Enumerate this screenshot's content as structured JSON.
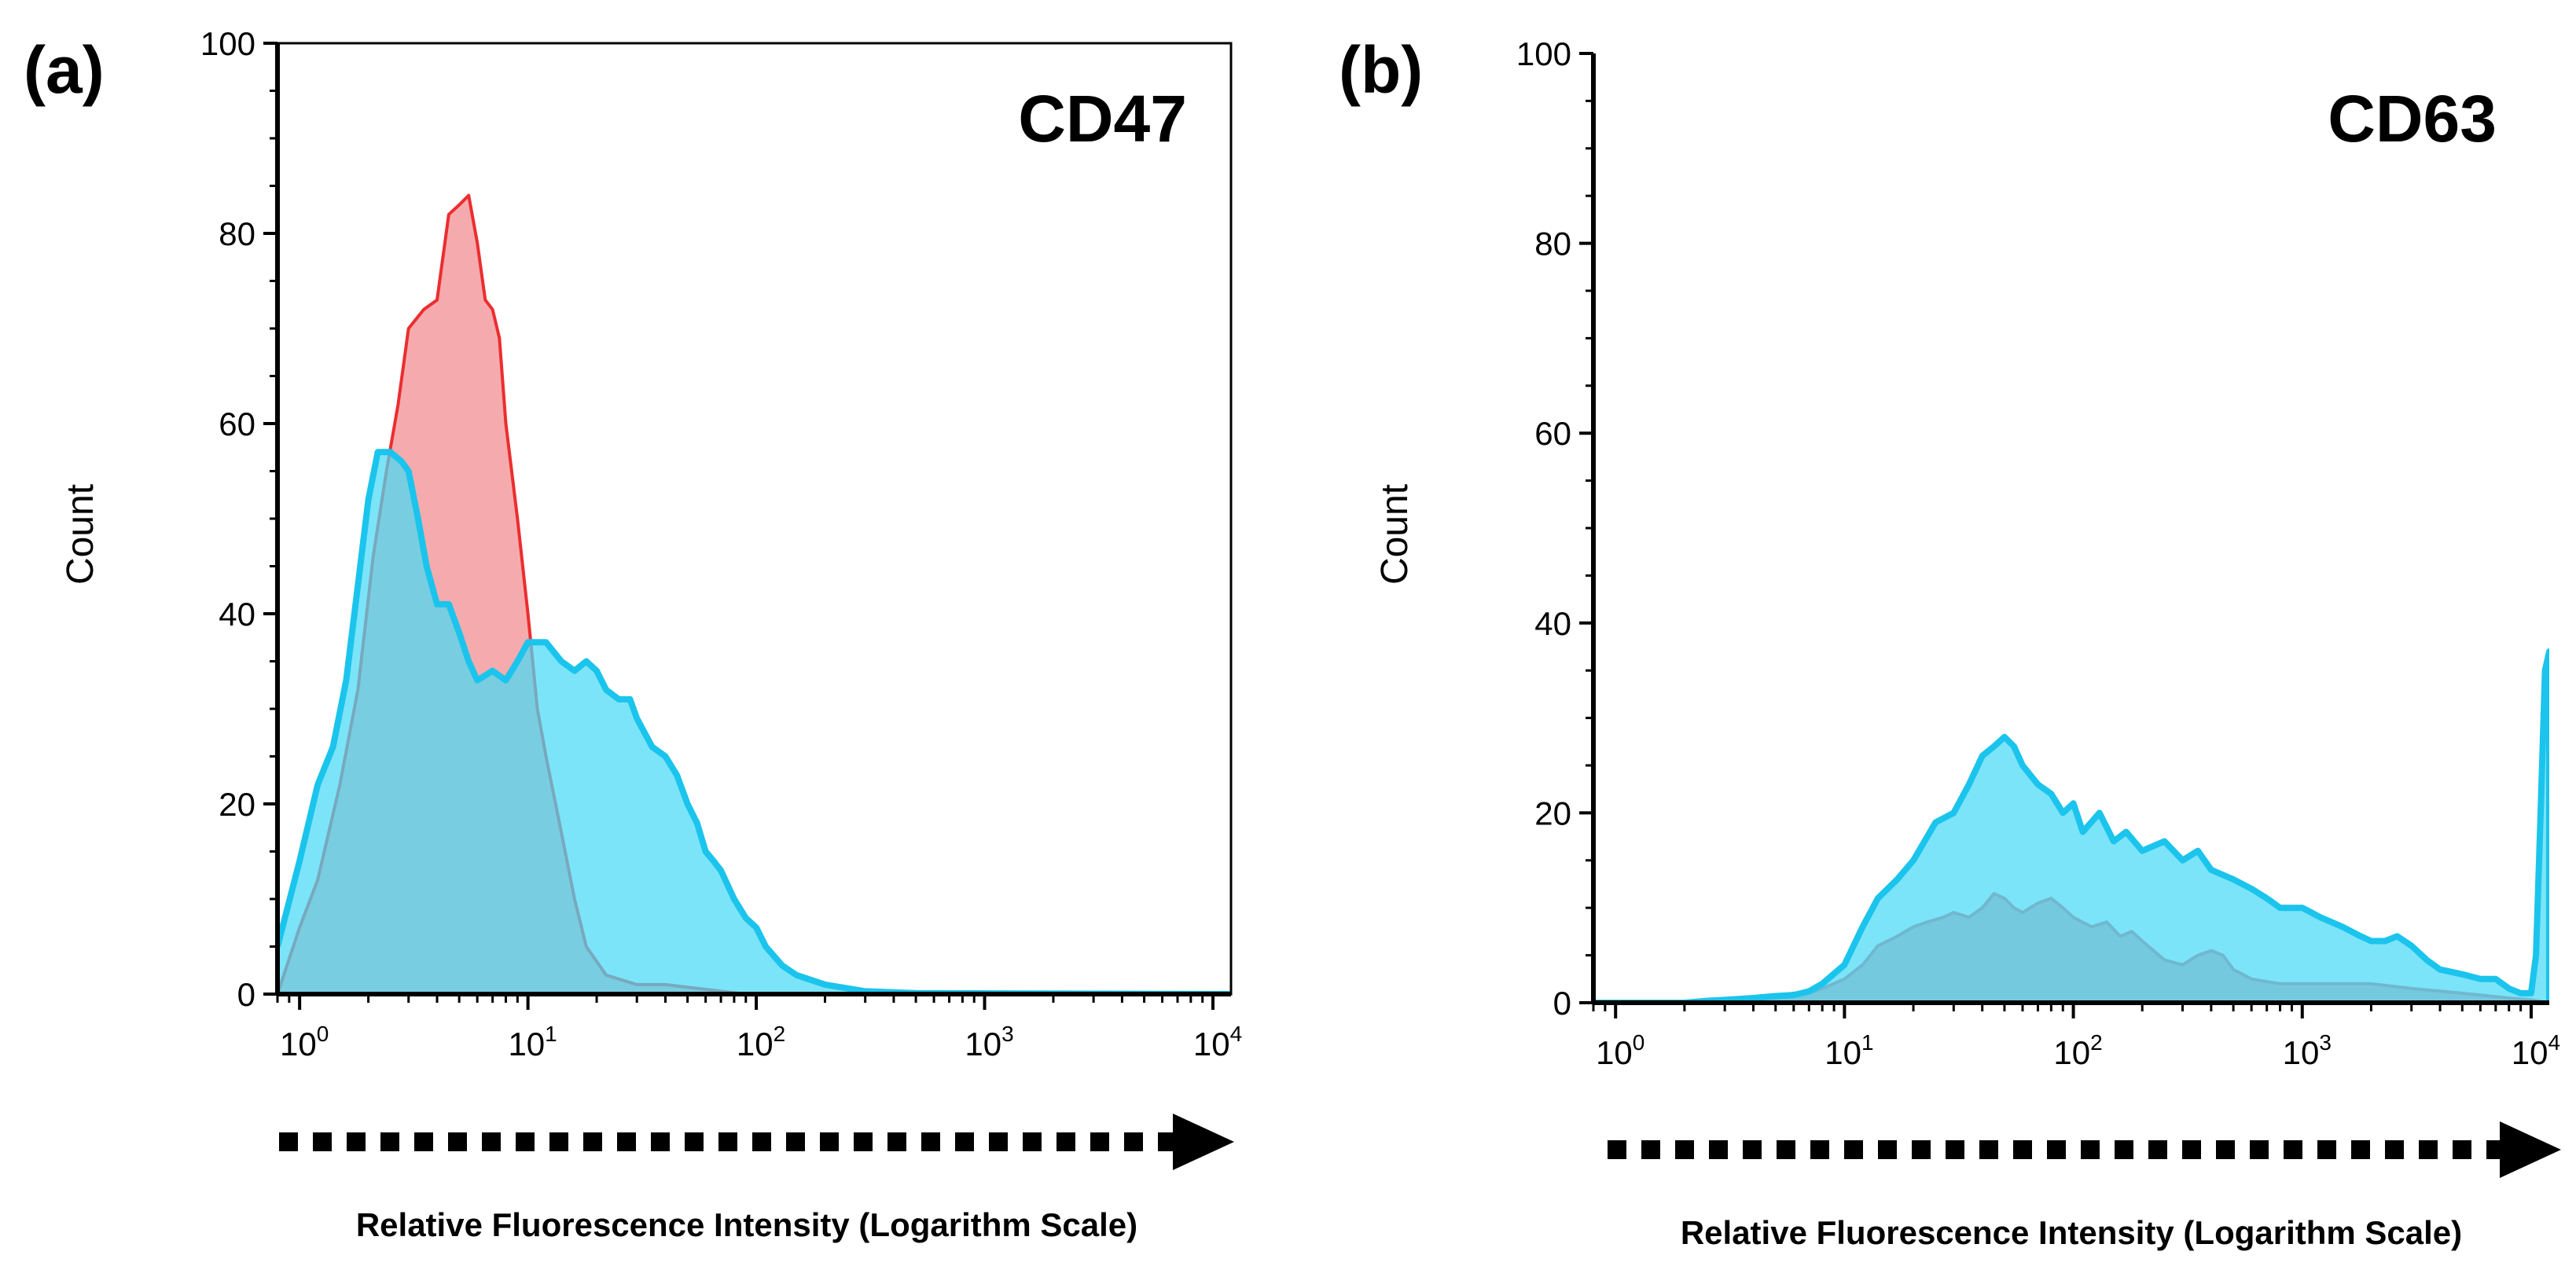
{
  "chart_data": [
    {
      "type": "area",
      "panel_label": "(a)",
      "title": "CD47",
      "xlabel": "Relative Fluorescence Intensity (Logarithm Scale)",
      "ylabel": "Count",
      "x_scale": "log",
      "xlim": [
        0.8,
        12000
      ],
      "ylim": [
        0,
        100
      ],
      "y_ticks": [
        0,
        20,
        40,
        60,
        80,
        100
      ],
      "y_tick_labels": [
        "0",
        "20",
        "40",
        "60",
        "80",
        "100"
      ],
      "x_ticks": [
        1,
        10,
        100,
        1000,
        10000
      ],
      "x_tick_labels": [
        [
          "10",
          "0"
        ],
        [
          "10",
          "1"
        ],
        [
          "10",
          "2"
        ],
        [
          "10",
          "3"
        ],
        [
          "10",
          "4"
        ]
      ],
      "series": [
        {
          "name": "red",
          "color": "#ec2d2f",
          "fill": "#f4a2a4",
          "points": [
            [
              0.8,
              0
            ],
            [
              1.0,
              7
            ],
            [
              1.2,
              12
            ],
            [
              1.5,
              22
            ],
            [
              1.8,
              32
            ],
            [
              2.1,
              46
            ],
            [
              2.4,
              55
            ],
            [
              2.7,
              62
            ],
            [
              3.0,
              70
            ],
            [
              3.5,
              72
            ],
            [
              4.0,
              73
            ],
            [
              4.5,
              82
            ],
            [
              5.0,
              83
            ],
            [
              5.5,
              84
            ],
            [
              6.0,
              79
            ],
            [
              6.5,
              73
            ],
            [
              7.0,
              72
            ],
            [
              7.5,
              69
            ],
            [
              8.0,
              60
            ],
            [
              9.0,
              50
            ],
            [
              10.0,
              40
            ],
            [
              11.0,
              30
            ],
            [
              12.0,
              25
            ],
            [
              14.0,
              17
            ],
            [
              16.0,
              10
            ],
            [
              18.0,
              5
            ],
            [
              22.0,
              2
            ],
            [
              30.0,
              1
            ],
            [
              40.0,
              1
            ],
            [
              60.0,
              0.5
            ],
            [
              90.0,
              0
            ]
          ]
        },
        {
          "name": "cyan",
          "color": "#1bc4ec",
          "fill": "#4ad9f5",
          "points": [
            [
              0.8,
              5
            ],
            [
              1.0,
              14
            ],
            [
              1.2,
              22
            ],
            [
              1.4,
              26
            ],
            [
              1.6,
              33
            ],
            [
              1.8,
              43
            ],
            [
              2.0,
              52
            ],
            [
              2.2,
              57
            ],
            [
              2.5,
              57
            ],
            [
              2.8,
              56
            ],
            [
              3.0,
              55
            ],
            [
              3.3,
              50
            ],
            [
              3.6,
              45
            ],
            [
              4.0,
              41
            ],
            [
              4.5,
              41
            ],
            [
              5.0,
              38
            ],
            [
              5.5,
              35
            ],
            [
              6.0,
              33
            ],
            [
              7.0,
              34
            ],
            [
              8.0,
              33
            ],
            [
              9.0,
              35
            ],
            [
              10.0,
              37
            ],
            [
              12.0,
              37
            ],
            [
              14.0,
              35
            ],
            [
              16.0,
              34
            ],
            [
              18.0,
              35
            ],
            [
              20.0,
              34
            ],
            [
              22.0,
              32
            ],
            [
              25.0,
              31
            ],
            [
              28.0,
              31
            ],
            [
              30.0,
              29
            ],
            [
              35.0,
              26
            ],
            [
              40.0,
              25
            ],
            [
              45.0,
              23
            ],
            [
              50.0,
              20
            ],
            [
              55.0,
              18
            ],
            [
              60.0,
              15
            ],
            [
              65.0,
              14
            ],
            [
              70.0,
              13
            ],
            [
              80.0,
              10
            ],
            [
              90.0,
              8
            ],
            [
              100.0,
              7
            ],
            [
              110.0,
              5
            ],
            [
              130.0,
              3
            ],
            [
              150.0,
              2
            ],
            [
              200.0,
              1
            ],
            [
              300.0,
              0.3
            ],
            [
              500.0,
              0.1
            ],
            [
              12000.0,
              0
            ]
          ]
        }
      ]
    },
    {
      "type": "area",
      "panel_label": "(b)",
      "title": "CD63",
      "xlabel": "Relative Fluorescence Intensity (Logarithm Scale)",
      "ylabel": "Count",
      "x_scale": "log",
      "xlim": [
        0.8,
        12000
      ],
      "ylim": [
        0,
        100
      ],
      "y_ticks": [
        0,
        20,
        40,
        60,
        80,
        100
      ],
      "y_tick_labels": [
        "0",
        "20",
        "40",
        "60",
        "80",
        "100"
      ],
      "x_ticks": [
        1,
        10,
        100,
        1000,
        10000
      ],
      "x_tick_labels": [
        [
          "10",
          "0"
        ],
        [
          "10",
          "1"
        ],
        [
          "10",
          "2"
        ],
        [
          "10",
          "3"
        ],
        [
          "10",
          "4"
        ]
      ],
      "series": [
        {
          "name": "red",
          "color": "#d0616e",
          "fill": "#e2949c",
          "points": [
            [
              0.8,
              0
            ],
            [
              2.0,
              0
            ],
            [
              4.0,
              0.3
            ],
            [
              5.0,
              0.7
            ],
            [
              6.0,
              1
            ],
            [
              7.0,
              1
            ],
            [
              8.0,
              1.5
            ],
            [
              10.0,
              2.5
            ],
            [
              12.0,
              4
            ],
            [
              14.0,
              6
            ],
            [
              17.0,
              7
            ],
            [
              20.0,
              8
            ],
            [
              23.0,
              8.5
            ],
            [
              27.0,
              9
            ],
            [
              30.0,
              9.5
            ],
            [
              35.0,
              9
            ],
            [
              40.0,
              10
            ],
            [
              45.0,
              11.5
            ],
            [
              50.0,
              11
            ],
            [
              55.0,
              10
            ],
            [
              60.0,
              9.5
            ],
            [
              70.0,
              10.5
            ],
            [
              80.0,
              11
            ],
            [
              90.0,
              10
            ],
            [
              100.0,
              9
            ],
            [
              120.0,
              8
            ],
            [
              140.0,
              8.5
            ],
            [
              160.0,
              7
            ],
            [
              180.0,
              7.5
            ],
            [
              200.0,
              6.5
            ],
            [
              250.0,
              4.5
            ],
            [
              300.0,
              4
            ],
            [
              350.0,
              5
            ],
            [
              400.0,
              5.5
            ],
            [
              450.0,
              5
            ],
            [
              500.0,
              3.5
            ],
            [
              600.0,
              2.5
            ],
            [
              800.0,
              2
            ],
            [
              1000.0,
              2
            ],
            [
              1500.0,
              2
            ],
            [
              2000.0,
              2
            ],
            [
              3000.0,
              1.5
            ],
            [
              5000.0,
              1
            ],
            [
              8000.0,
              0.5
            ],
            [
              10000.0,
              0.3
            ],
            [
              12000.0,
              0
            ]
          ]
        },
        {
          "name": "cyan",
          "color": "#1bc4ec",
          "fill": "#4ad9f5",
          "points": [
            [
              0.8,
              0
            ],
            [
              2.0,
              0
            ],
            [
              2.5,
              0.2
            ],
            [
              3.0,
              0.3
            ],
            [
              4.0,
              0.5
            ],
            [
              5.0,
              0.7
            ],
            [
              6.0,
              0.8
            ],
            [
              7.0,
              1.2
            ],
            [
              8.0,
              2
            ],
            [
              10.0,
              4
            ],
            [
              12.0,
              8
            ],
            [
              14.0,
              11
            ],
            [
              17.0,
              13
            ],
            [
              20.0,
              15
            ],
            [
              25.0,
              19
            ],
            [
              30.0,
              20
            ],
            [
              35.0,
              23
            ],
            [
              40.0,
              26
            ],
            [
              45.0,
              27
            ],
            [
              50.0,
              28
            ],
            [
              55.0,
              27
            ],
            [
              60.0,
              25
            ],
            [
              70.0,
              23
            ],
            [
              80.0,
              22
            ],
            [
              90.0,
              20
            ],
            [
              100.0,
              21
            ],
            [
              110.0,
              18
            ],
            [
              130.0,
              20
            ],
            [
              150.0,
              17
            ],
            [
              170.0,
              18
            ],
            [
              200.0,
              16
            ],
            [
              250.0,
              17
            ],
            [
              300.0,
              15
            ],
            [
              350.0,
              16
            ],
            [
              400.0,
              14
            ],
            [
              500.0,
              13
            ],
            [
              600.0,
              12
            ],
            [
              700.0,
              11
            ],
            [
              800.0,
              10
            ],
            [
              1000.0,
              10
            ],
            [
              1200.0,
              9
            ],
            [
              1500.0,
              8
            ],
            [
              1800.0,
              7
            ],
            [
              2000.0,
              6.5
            ],
            [
              2300.0,
              6.5
            ],
            [
              2600.0,
              7
            ],
            [
              3000.0,
              6
            ],
            [
              3500.0,
              4.5
            ],
            [
              4000.0,
              3.5
            ],
            [
              5000.0,
              3
            ],
            [
              6000.0,
              2.5
            ],
            [
              7000.0,
              2.5
            ],
            [
              8000.0,
              1.5
            ],
            [
              9000.0,
              1
            ],
            [
              10000.0,
              1
            ],
            [
              10500.0,
              5
            ],
            [
              11000.0,
              20
            ],
            [
              11500.0,
              35
            ],
            [
              12000.0,
              37
            ],
            [
              12000.0,
              0
            ]
          ]
        }
      ]
    }
  ]
}
